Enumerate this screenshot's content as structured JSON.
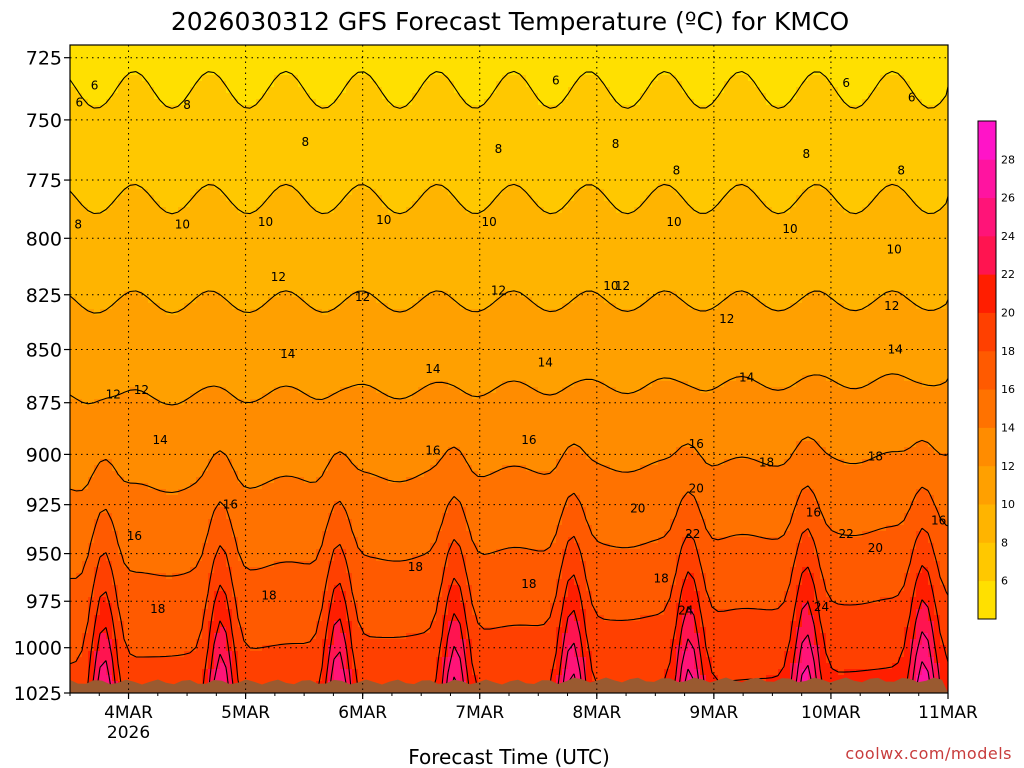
{
  "chart_data": {
    "type": "heatmap",
    "title": "2026030312 GFS Forecast Temperature (ºC) for KMCO",
    "xlabel": "Forecast Time (UTC)",
    "ylabel": "",
    "credit": "coolwx.com/models",
    "x_ticks": [
      {
        "label": "4MAR",
        "sublabel": "2026",
        "day": 4
      },
      {
        "label": "5MAR",
        "sublabel": "",
        "day": 5
      },
      {
        "label": "6MAR",
        "sublabel": "",
        "day": 6
      },
      {
        "label": "7MAR",
        "sublabel": "",
        "day": 7
      },
      {
        "label": "8MAR",
        "sublabel": "",
        "day": 8
      },
      {
        "label": "9MAR",
        "sublabel": "",
        "day": 9
      },
      {
        "label": "10MAR",
        "sublabel": "",
        "day": 10
      },
      {
        "label": "11MAR",
        "sublabel": "",
        "day": 11
      }
    ],
    "xlim_day": [
      3.5,
      11.0
    ],
    "y_ticks": [
      725,
      750,
      775,
      800,
      825,
      850,
      875,
      900,
      925,
      950,
      975,
      1000,
      1025
    ],
    "ylim": [
      720,
      1025
    ],
    "y_scale": "log",
    "colorbar": {
      "levels": [
        4,
        6,
        8,
        10,
        12,
        14,
        16,
        18,
        20,
        22,
        24,
        26,
        28,
        30
      ],
      "tick_labels": [
        "6",
        "8",
        "10",
        "12",
        "14",
        "16",
        "18",
        "20",
        "22",
        "24",
        "26",
        "28"
      ],
      "colors": [
        "#ffe000",
        "#ffc800",
        "#ffb400",
        "#ffa000",
        "#ff8c00",
        "#ff7200",
        "#ff5a00",
        "#ff4000",
        "#ff1e00",
        "#ff1450",
        "#ff1478",
        "#ff14a0",
        "#ff14c8"
      ]
    },
    "contour_labels": [
      {
        "text": "6",
        "day": 3.71,
        "p": 736
      },
      {
        "text": "6",
        "day": 3.58,
        "p": 743
      },
      {
        "text": "6",
        "day": 7.65,
        "p": 734
      },
      {
        "text": "6",
        "day": 10.13,
        "p": 735
      },
      {
        "text": "6",
        "day": 10.69,
        "p": 741
      },
      {
        "text": "8",
        "day": 3.57,
        "p": 794
      },
      {
        "text": "8",
        "day": 4.5,
        "p": 744
      },
      {
        "text": "8",
        "day": 5.51,
        "p": 759
      },
      {
        "text": "8",
        "day": 7.16,
        "p": 762
      },
      {
        "text": "8",
        "day": 8.16,
        "p": 760
      },
      {
        "text": "8",
        "day": 8.68,
        "p": 771
      },
      {
        "text": "8",
        "day": 9.79,
        "p": 764
      },
      {
        "text": "8",
        "day": 10.6,
        "p": 771
      },
      {
        "text": "10",
        "day": 4.46,
        "p": 794
      },
      {
        "text": "10",
        "day": 5.17,
        "p": 793
      },
      {
        "text": "10",
        "day": 6.18,
        "p": 792
      },
      {
        "text": "10",
        "day": 7.08,
        "p": 793
      },
      {
        "text": "10",
        "day": 8.12,
        "p": 821
      },
      {
        "text": "10",
        "day": 8.66,
        "p": 793
      },
      {
        "text": "10",
        "day": 9.65,
        "p": 796
      },
      {
        "text": "10",
        "day": 10.54,
        "p": 805
      },
      {
        "text": "12",
        "day": 5.28,
        "p": 817
      },
      {
        "text": "12",
        "day": 6.0,
        "p": 826
      },
      {
        "text": "12",
        "day": 7.16,
        "p": 823
      },
      {
        "text": "12",
        "day": 8.22,
        "p": 821
      },
      {
        "text": "12",
        "day": 9.11,
        "p": 836
      },
      {
        "text": "12",
        "day": 10.52,
        "p": 830
      },
      {
        "text": "12",
        "day": 3.87,
        "p": 871
      },
      {
        "text": "12",
        "day": 4.11,
        "p": 869
      },
      {
        "text": "14",
        "day": 5.36,
        "p": 852
      },
      {
        "text": "14",
        "day": 6.6,
        "p": 859
      },
      {
        "text": "14",
        "day": 7.56,
        "p": 856
      },
      {
        "text": "14",
        "day": 9.28,
        "p": 863
      },
      {
        "text": "14",
        "day": 10.55,
        "p": 850
      },
      {
        "text": "14",
        "day": 4.27,
        "p": 893
      },
      {
        "text": "16",
        "day": 6.6,
        "p": 898
      },
      {
        "text": "16",
        "day": 7.42,
        "p": 893
      },
      {
        "text": "16",
        "day": 8.85,
        "p": 895
      },
      {
        "text": "16",
        "day": 4.87,
        "p": 925
      },
      {
        "text": "16",
        "day": 4.05,
        "p": 941
      },
      {
        "text": "16",
        "day": 9.85,
        "p": 929
      },
      {
        "text": "16",
        "day": 10.92,
        "p": 933
      },
      {
        "text": "18",
        "day": 4.25,
        "p": 979
      },
      {
        "text": "18",
        "day": 5.2,
        "p": 972
      },
      {
        "text": "18",
        "day": 6.45,
        "p": 957
      },
      {
        "text": "18",
        "day": 7.42,
        "p": 966
      },
      {
        "text": "18",
        "day": 8.55,
        "p": 963
      },
      {
        "text": "18",
        "day": 9.45,
        "p": 904
      },
      {
        "text": "18",
        "day": 10.38,
        "p": 901
      },
      {
        "text": "18",
        "day": 10.97,
        "p": 955
      },
      {
        "text": "20",
        "day": 8.85,
        "p": 917
      },
      {
        "text": "20",
        "day": 8.35,
        "p": 927
      },
      {
        "text": "20",
        "day": 10.38,
        "p": 947
      },
      {
        "text": "20",
        "day": 10.97,
        "p": 986
      },
      {
        "text": "22",
        "day": 8.82,
        "p": 940
      },
      {
        "text": "22",
        "day": 10.13,
        "p": 940
      },
      {
        "text": "22",
        "day": 11.0,
        "p": 1003
      },
      {
        "text": "24",
        "day": 8.76,
        "p": 980
      },
      {
        "text": "24",
        "day": 9.92,
        "p": 978
      }
    ]
  }
}
